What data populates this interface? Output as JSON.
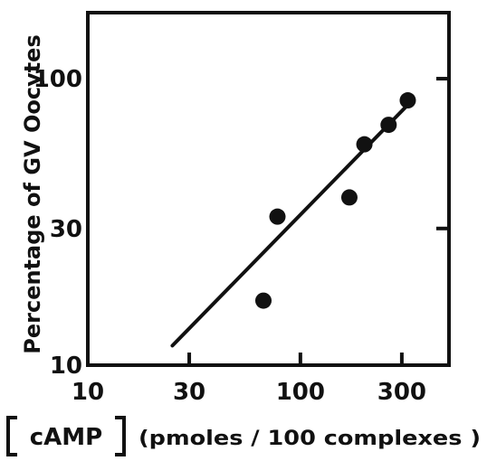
{
  "chart_data": {
    "type": "scatter",
    "ylabel": "Percentage of  GV Oocytes",
    "xlabel_main": "cAMP",
    "xlabel_units": "(pmoles / 100 complexes )",
    "x_scale": "log",
    "y_scale": "log",
    "xlim": [
      10,
      500
    ],
    "ylim": [
      10,
      170
    ],
    "x_ticks": [
      {
        "value": 10,
        "label": "10"
      },
      {
        "value": 30,
        "label": "30"
      },
      {
        "value": 100,
        "label": "100"
      },
      {
        "value": 300,
        "label": "300"
      }
    ],
    "y_ticks": [
      {
        "value": 10,
        "label": "10"
      },
      {
        "value": 30,
        "label": "30"
      },
      {
        "value": 100,
        "label": "100"
      }
    ],
    "points": [
      {
        "x": 67,
        "y": 16.8
      },
      {
        "x": 78,
        "y": 33
      },
      {
        "x": 170,
        "y": 38.5
      },
      {
        "x": 200,
        "y": 59
      },
      {
        "x": 260,
        "y": 69
      },
      {
        "x": 320,
        "y": 84
      }
    ],
    "fit_line": {
      "x": [
        25,
        320
      ],
      "y": [
        11.7,
        81
      ]
    },
    "grid": false,
    "colors": {
      "ink": "#111111",
      "background": "#ffffff"
    }
  }
}
